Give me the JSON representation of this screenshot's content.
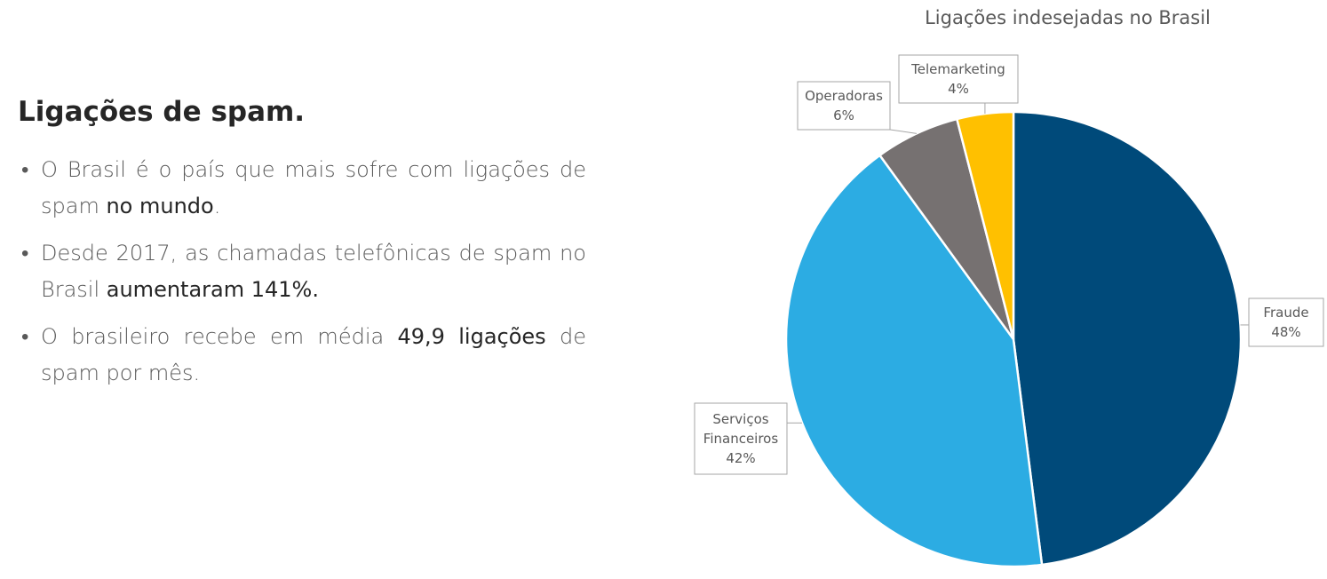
{
  "text": {
    "heading": "Ligações de spam.",
    "bullets": [
      {
        "pre": "O Brasil é o país que mais sofre com ligações de spam ",
        "hl": "no mundo",
        "post": "."
      },
      {
        "pre": "Desde 2017, as chamadas telefônicas de spam no Brasil ",
        "hl": "aumentaram 141%.",
        "post": ""
      },
      {
        "pre": "O brasileiro recebe em média ",
        "hl": "49,9 ligações",
        "post": " de spam por mês."
      }
    ]
  },
  "chart_data": {
    "type": "pie",
    "title": "Ligações indesejadas no Brasil",
    "slices": [
      {
        "label": "Fraude",
        "value": 48,
        "display": "48%",
        "color": "#004A7A"
      },
      {
        "label": "Serviços Financeiros",
        "value": 42,
        "display": "42%",
        "color": "#2CACE3"
      },
      {
        "label": "Operadoras",
        "value": 6,
        "display": "6%",
        "color": "#767171"
      },
      {
        "label": "Telemarketing",
        "value": 4,
        "display": "4%",
        "color": "#FFC000"
      }
    ],
    "start_angle": "12 o'clock, clockwise",
    "legend": "none (callout labels)"
  }
}
